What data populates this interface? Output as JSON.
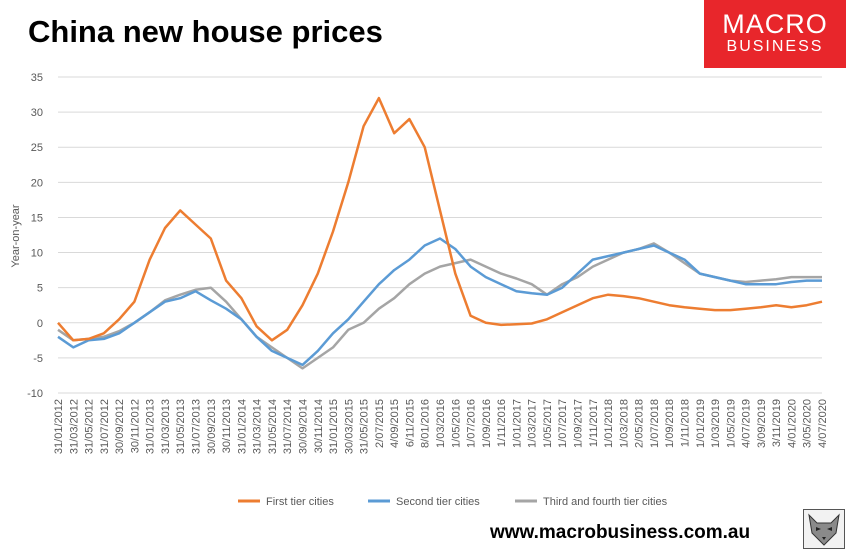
{
  "title": "China new house prices",
  "logo": {
    "line1": "MACRO",
    "line2": "BUSINESS"
  },
  "website": "www.macrobusiness.com.au",
  "colors": {
    "first": "#ed7d31",
    "second": "#5b9bd5",
    "third": "#a5a5a5",
    "logo": "#e8262b"
  },
  "chart_data": {
    "type": "line",
    "title": "China new house prices",
    "xlabel": "",
    "ylabel": "Year-on-year",
    "ylim": [
      -10,
      35
    ],
    "yticks": [
      -10,
      -5,
      0,
      5,
      10,
      15,
      20,
      25,
      30,
      35
    ],
    "grid": true,
    "legend": "bottom",
    "categories": [
      "31/01/2012",
      "31/03/2012",
      "31/05/2012",
      "31/07/2012",
      "30/09/2012",
      "30/11/2012",
      "31/01/2013",
      "31/03/2013",
      "31/05/2013",
      "31/07/2013",
      "30/09/2013",
      "30/11/2013",
      "31/01/2014",
      "31/03/2014",
      "31/05/2014",
      "31/07/2014",
      "30/09/2014",
      "30/11/2014",
      "31/01/2015",
      "30/03/2015",
      "31/05/2015",
      "2/07/2015",
      "4/09/2015",
      "6/11/2015",
      "8/01/2016",
      "1/03/2016",
      "1/05/2016",
      "1/07/2016",
      "1/09/2016",
      "1/11/2016",
      "1/01/2017",
      "1/03/2017",
      "1/05/2017",
      "1/07/2017",
      "1/09/2017",
      "1/11/2017",
      "1/01/2018",
      "1/03/2018",
      "2/05/2018",
      "1/07/2018",
      "1/09/2018",
      "1/11/2018",
      "1/01/2019",
      "1/03/2019",
      "1/05/2019",
      "4/07/2019",
      "3/09/2019",
      "3/11/2019",
      "4/01/2020",
      "3/05/2020",
      "4/07/2020"
    ],
    "series": [
      {
        "name": "First tier cities",
        "values": [
          0,
          -2.5,
          -2.3,
          -1.5,
          0.5,
          3,
          9,
          13.5,
          16,
          14,
          12,
          6,
          3.5,
          -0.5,
          -2.5,
          -1,
          2.5,
          7,
          13,
          20,
          28,
          32,
          27,
          29,
          25,
          16,
          7,
          1,
          0,
          -0.3,
          -0.2,
          -0.1,
          0.5,
          1.5,
          2.5,
          3.5,
          4,
          3.8,
          3.5,
          3,
          2.5,
          2.2,
          2,
          1.8,
          1.8,
          2,
          2.2,
          2.5,
          2.2,
          2.5,
          3
        ]
      },
      {
        "name": "Second tier cities",
        "values": [
          -2,
          -3.5,
          -2.5,
          -2.3,
          -1.5,
          0,
          1.5,
          3,
          3.5,
          4.5,
          3.2,
          2,
          0.5,
          -2,
          -4,
          -5,
          -6,
          -4,
          -1.5,
          0.5,
          3,
          5.5,
          7.5,
          9,
          11,
          12,
          10.5,
          8,
          6.5,
          5.5,
          4.5,
          4.2,
          4,
          5,
          7,
          9,
          9.5,
          10,
          10.5,
          11,
          10,
          9,
          7,
          6.5,
          6,
          5.5,
          5.5,
          5.5,
          5.8,
          6,
          6
        ]
      },
      {
        "name": "Third and fourth tier cities",
        "values": [
          -1,
          -2.5,
          -2.3,
          -2,
          -1.2,
          0,
          1.5,
          3.2,
          4,
          4.7,
          5,
          3,
          0.5,
          -2,
          -3.5,
          -5,
          -6.5,
          -5,
          -3.5,
          -1,
          0,
          2,
          3.5,
          5.5,
          7,
          8,
          8.5,
          9,
          8,
          7,
          6.3,
          5.5,
          4,
          5.5,
          6.5,
          8,
          9,
          10,
          10.5,
          11.3,
          10,
          8.5,
          7,
          6.5,
          6,
          5.8,
          6,
          6.2,
          6.5,
          6.5,
          6.5
        ]
      }
    ]
  }
}
